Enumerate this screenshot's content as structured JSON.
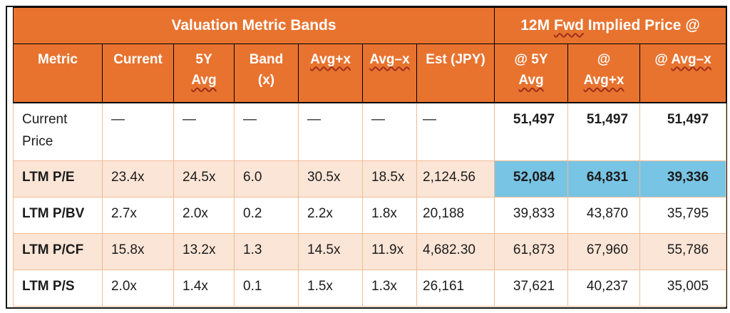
{
  "colors": {
    "orange": "#E8732F",
    "peach": "#FBE5D6",
    "blue": "#78C4E4",
    "grid": "#F2BC93",
    "ink": "#1C1C1C",
    "squiggle": "#9E2F1C"
  },
  "banner": {
    "left": {
      "name": "valuation-metric-bands",
      "lines": [
        [
          {
            "t": "Valuation Metric Bands"
          }
        ]
      ]
    },
    "right": {
      "name": "12m-fwd-implied-price",
      "lines": [
        [
          {
            "t": "12M "
          },
          {
            "t": "Fwd",
            "sq": true
          },
          {
            "t": " Implied Price @"
          }
        ]
      ]
    }
  },
  "columns": [
    {
      "name": "metric",
      "lines": [
        [
          {
            "t": "Metric"
          }
        ]
      ]
    },
    {
      "name": "current",
      "lines": [
        [
          {
            "t": "Current"
          }
        ]
      ]
    },
    {
      "name": "5y-avg",
      "lines": [
        [
          {
            "t": "5Y"
          }
        ],
        [
          {
            "t": "Avg",
            "sq": true
          }
        ]
      ]
    },
    {
      "name": "band-x",
      "lines": [
        [
          {
            "t": "Band"
          }
        ],
        [
          {
            "t": "(x)"
          }
        ]
      ]
    },
    {
      "name": "avg-plus-x",
      "lines": [
        [
          {
            "t": "Avg+x",
            "sq": true
          }
        ]
      ]
    },
    {
      "name": "avg-minus-x",
      "lines": [
        [
          {
            "t": "Avg–x",
            "sq": true
          }
        ]
      ]
    },
    {
      "name": "est-jpy",
      "lines": [
        [
          {
            "t": "Est (JPY)"
          }
        ]
      ]
    },
    {
      "name": "at-5y-avg",
      "lines": [
        [
          {
            "t": "@ 5Y"
          }
        ],
        [
          {
            "t": "Avg",
            "sq": true
          }
        ]
      ]
    },
    {
      "name": "at-avg-plus-x",
      "lines": [
        [
          {
            "t": "@"
          }
        ],
        [
          {
            "t": "Avg+x",
            "sq": true
          }
        ]
      ]
    },
    {
      "name": "at-avg-minus-x",
      "lines": [
        [
          {
            "t": "@ "
          },
          {
            "t": "Avg–x",
            "sq": true
          }
        ]
      ]
    }
  ],
  "rows": [
    {
      "label": "Current Price",
      "label_bold": false,
      "bg": "white",
      "tall": true,
      "cells": [
        "—",
        "—",
        "—",
        "—",
        "—",
        "—"
      ],
      "implied": [
        "51,497",
        "51,497",
        "51,497"
      ],
      "implied_bold": true,
      "implied_bg": "white"
    },
    {
      "label": "LTM P/E",
      "label_bold": true,
      "bg": "peach",
      "tall": false,
      "cells": [
        "23.4x",
        "24.5x",
        "6.0",
        "30.5x",
        "18.5x",
        "2,124.56"
      ],
      "implied": [
        "52,084",
        "64,831",
        "39,336"
      ],
      "implied_bold": true,
      "implied_bg": "blue"
    },
    {
      "label": "LTM P/BV",
      "label_bold": true,
      "bg": "white",
      "tall": false,
      "cells": [
        "2.7x",
        "2.0x",
        "0.2",
        "2.2x",
        "1.8x",
        "20,188"
      ],
      "implied": [
        "39,833",
        "43,870",
        "35,795"
      ],
      "implied_bold": false,
      "implied_bg": "white"
    },
    {
      "label": "LTM P/CF",
      "label_bold": true,
      "bg": "peach",
      "tall": false,
      "cells": [
        "15.8x",
        "13.2x",
        "1.3",
        "14.5x",
        "11.9x",
        "4,682.30"
      ],
      "implied": [
        "61,873",
        "67,960",
        "55,786"
      ],
      "implied_bold": false,
      "implied_bg": "peach"
    },
    {
      "label": "LTM P/S",
      "label_bold": true,
      "bg": "white",
      "tall": false,
      "cells": [
        "2.0x",
        "1.4x",
        "0.1",
        "1.5x",
        "1.3x",
        "26,161"
      ],
      "implied": [
        "37,621",
        "40,237",
        "35,005"
      ],
      "implied_bold": false,
      "implied_bg": "white"
    }
  ]
}
